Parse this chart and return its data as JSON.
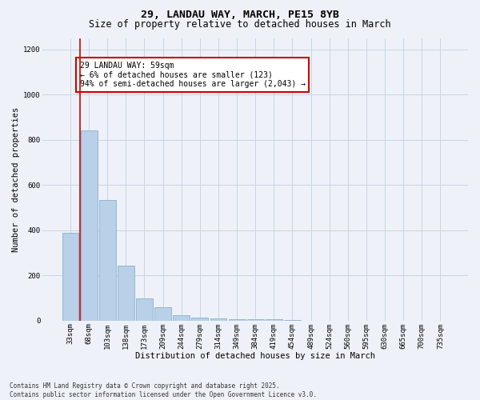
{
  "title_line1": "29, LANDAU WAY, MARCH, PE15 8YB",
  "title_line2": "Size of property relative to detached houses in March",
  "xlabel": "Distribution of detached houses by size in March",
  "ylabel": "Number of detached properties",
  "categories": [
    "33sqm",
    "68sqm",
    "103sqm",
    "138sqm",
    "173sqm",
    "209sqm",
    "244sqm",
    "279sqm",
    "314sqm",
    "349sqm",
    "384sqm",
    "419sqm",
    "454sqm",
    "489sqm",
    "524sqm",
    "560sqm",
    "595sqm",
    "630sqm",
    "665sqm",
    "700sqm",
    "735sqm"
  ],
  "values": [
    390,
    840,
    535,
    245,
    100,
    58,
    25,
    15,
    10,
    8,
    5,
    5,
    2,
    1,
    1,
    0,
    0,
    0,
    0,
    0,
    0
  ],
  "bar_color": "#b8d0e8",
  "bar_edge_color": "#8ab0d0",
  "grid_color": "#c8d4e4",
  "background_color": "#eef2f8",
  "red_line_color": "#cc0000",
  "red_line_x": 0.5,
  "annotation_text": "29 LANDAU WAY: 59sqm\n← 6% of detached houses are smaller (123)\n94% of semi-detached houses are larger (2,043) →",
  "annotation_box_color": "#ffffff",
  "annotation_border_color": "#cc0000",
  "footer_line1": "Contains HM Land Registry data © Crown copyright and database right 2025.",
  "footer_line2": "Contains public sector information licensed under the Open Government Licence v3.0.",
  "ylim": [
    0,
    1250
  ],
  "yticks": [
    0,
    200,
    400,
    600,
    800,
    1000,
    1200
  ],
  "title_fontsize": 9.5,
  "subtitle_fontsize": 8.5,
  "axis_label_fontsize": 7.5,
  "tick_fontsize": 6.5,
  "annotation_fontsize": 7,
  "footer_fontsize": 5.5
}
